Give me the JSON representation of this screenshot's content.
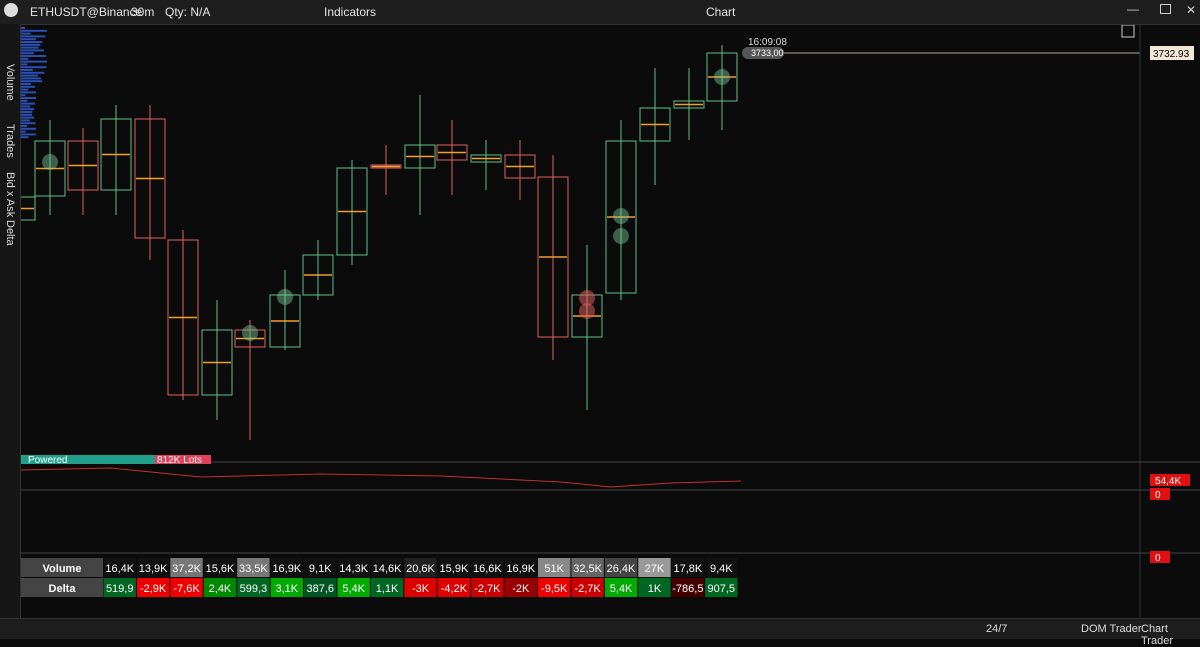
{
  "toolbar": {
    "symbol": "ETHUSDT@Binance",
    "timeframe": "30m",
    "qty": "Qty: N/A",
    "indicators": "Indicators",
    "title": "Chart"
  },
  "side_tabs": [
    "Volume",
    "Trades",
    "Bid x Ask",
    "Delta"
  ],
  "chart": {
    "time": "16:09:08",
    "price": "3733,00",
    "last_price": "3732.93",
    "indicator_label": "Powered",
    "lots": "812K Lots",
    "indicator_value": "54,4K",
    "panel_values": [
      "0",
      "0"
    ]
  },
  "table": {
    "rows": [
      {
        "label": "Volume",
        "cells": [
          "16,4K",
          "13,9K",
          "37,2K",
          "15,6K",
          "33,5K",
          "16,9K",
          "9,1K",
          "14,3K",
          "14,6K",
          "20,6K",
          "15,9K",
          "16,6K",
          "16,9K",
          "51K",
          "32,5K",
          "26,4K",
          "27K",
          "17,8K",
          "9,4K"
        ]
      },
      {
        "label": "Delta",
        "cells": [
          "519,9",
          "-2,9K",
          "-7,6K",
          "2,4K",
          "599,3",
          "3,1K",
          "387,6",
          "5,4K",
          "1,1K",
          "-3K",
          "-4,2K",
          "-2,7K",
          "-2K",
          "-9,5K",
          "-2,7K",
          "5,4K",
          "1K",
          "-786,5",
          "907,5"
        ]
      }
    ]
  },
  "status_bar": {
    "session": "24/7",
    "buttons": [
      "DOM Trader",
      "Chart Trader"
    ]
  }
}
